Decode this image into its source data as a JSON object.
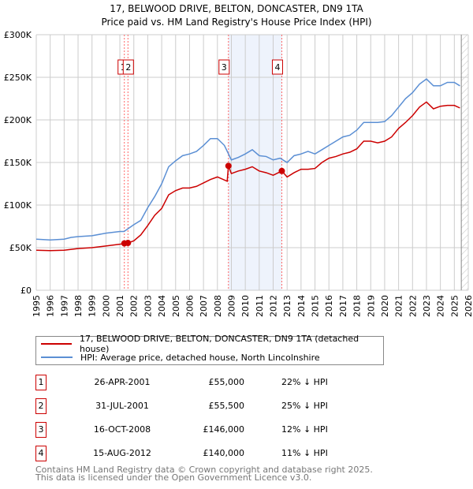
{
  "title": "17, BELWOOD DRIVE, BELTON, DONCASTER, DN9 1TA",
  "subtitle": "Price paid vs. HM Land Registry's House Price Index (HPI)",
  "chart_data": {
    "type": "line",
    "xlim": [
      1995,
      2026
    ],
    "ylim": [
      0,
      300000
    ],
    "x_ticks": [
      "1995",
      "1996",
      "1997",
      "1998",
      "1999",
      "2000",
      "2001",
      "2002",
      "2003",
      "2004",
      "2005",
      "2006",
      "2007",
      "2008",
      "2009",
      "2010",
      "2011",
      "2012",
      "2013",
      "2014",
      "2015",
      "2016",
      "2017",
      "2018",
      "2019",
      "2020",
      "2021",
      "2022",
      "2023",
      "2024",
      "2025",
      "2026"
    ],
    "y_ticks": [
      {
        "v": 0,
        "label": "£0"
      },
      {
        "v": 50000,
        "label": "£50K"
      },
      {
        "v": 100000,
        "label": "£100K"
      },
      {
        "v": 150000,
        "label": "£150K"
      },
      {
        "v": 200000,
        "label": "£200K"
      },
      {
        "v": 250000,
        "label": "£250K"
      },
      {
        "v": 300000,
        "label": "£300K"
      }
    ],
    "grid": true,
    "shaded_range": [
      2008.79,
      2012.62
    ],
    "hatched_from": 2025.5,
    "series": [
      {
        "name": "17, BELWOOD DRIVE, BELTON, DONCASTER, DN9 1TA (detached house)",
        "color": "#cc0000",
        "x": [
          1995,
          1996,
          1997,
          1998,
          1999,
          2000,
          2001,
          2001.32,
          2001.58,
          2002,
          2002.5,
          2003,
          2003.5,
          2004,
          2004.5,
          2005,
          2005.5,
          2006,
          2006.5,
          2007,
          2007.5,
          2008,
          2008.7,
          2008.79,
          2009,
          2009.5,
          2010,
          2010.5,
          2011,
          2011.5,
          2012,
          2012.62,
          2013,
          2013.5,
          2014,
          2014.5,
          2015,
          2015.5,
          2016,
          2016.5,
          2017,
          2017.5,
          2018,
          2018.5,
          2019,
          2019.5,
          2020,
          2020.5,
          2021,
          2021.5,
          2022,
          2022.5,
          2023,
          2023.5,
          2024,
          2024.5,
          2025,
          2025.4
        ],
        "y": [
          47000,
          46500,
          47000,
          49000,
          50000,
          52000,
          54000,
          55000,
          55500,
          58000,
          65000,
          76000,
          88000,
          96000,
          112000,
          117000,
          120000,
          120000,
          122000,
          126000,
          130000,
          133000,
          128000,
          146000,
          137000,
          140000,
          142000,
          145000,
          140000,
          138000,
          135000,
          140000,
          133000,
          138000,
          142000,
          142000,
          143000,
          150000,
          155000,
          157000,
          160000,
          162000,
          166000,
          175000,
          175000,
          173000,
          175000,
          180000,
          190000,
          197000,
          205000,
          215000,
          221000,
          213000,
          216000,
          217000,
          217000,
          214000
        ]
      },
      {
        "name": "HPI: Average price, detached house, North Lincolnshire",
        "color": "#5b8fd4",
        "x": [
          1995,
          1996,
          1997,
          1997.5,
          1998,
          1999,
          2000,
          2001,
          2001.3,
          2002,
          2002.5,
          2003,
          2003.5,
          2004,
          2004.5,
          2005,
          2005.5,
          2006,
          2006.5,
          2007,
          2007.5,
          2008,
          2008.5,
          2009,
          2009.5,
          2010,
          2010.5,
          2011,
          2011.5,
          2012,
          2012.5,
          2013,
          2013.5,
          2014,
          2014.5,
          2015,
          2015.5,
          2016,
          2016.5,
          2017,
          2017.5,
          2018,
          2018.5,
          2019,
          2019.5,
          2020,
          2020.5,
          2021,
          2021.5,
          2022,
          2022.5,
          2023,
          2023.5,
          2024,
          2024.5,
          2025,
          2025.4
        ],
        "y": [
          60000,
          59000,
          60000,
          62000,
          63000,
          64000,
          67000,
          69000,
          69000,
          77000,
          82000,
          97000,
          110000,
          125000,
          145000,
          152000,
          158000,
          160000,
          163000,
          170000,
          178000,
          178000,
          170000,
          153000,
          156000,
          160000,
          165000,
          158000,
          157000,
          153000,
          155000,
          150000,
          158000,
          160000,
          163000,
          160000,
          165000,
          170000,
          175000,
          180000,
          182000,
          188000,
          197000,
          197000,
          197000,
          198000,
          205000,
          215000,
          225000,
          232000,
          242000,
          248000,
          240000,
          240000,
          244000,
          244000,
          240000
        ]
      }
    ],
    "sales": [
      {
        "n": "1",
        "x": 2001.32,
        "y": 55000,
        "date": "26-APR-2001",
        "price": "£55,000",
        "hpi": "22% ↓ HPI"
      },
      {
        "n": "2",
        "x": 2001.58,
        "y": 55500,
        "date": "31-JUL-2001",
        "price": "£55,500",
        "hpi": "25% ↓ HPI"
      },
      {
        "n": "3",
        "x": 2008.79,
        "y": 146000,
        "date": "16-OCT-2008",
        "price": "£146,000",
        "hpi": "12% ↓ HPI"
      },
      {
        "n": "4",
        "x": 2012.62,
        "y": 140000,
        "date": "15-AUG-2012",
        "price": "£140,000",
        "hpi": "11% ↓ HPI"
      }
    ]
  },
  "footer": [
    "Contains HM Land Registry data © Crown copyright and database right 2025.",
    "This data is licensed under the Open Government Licence v3.0."
  ]
}
